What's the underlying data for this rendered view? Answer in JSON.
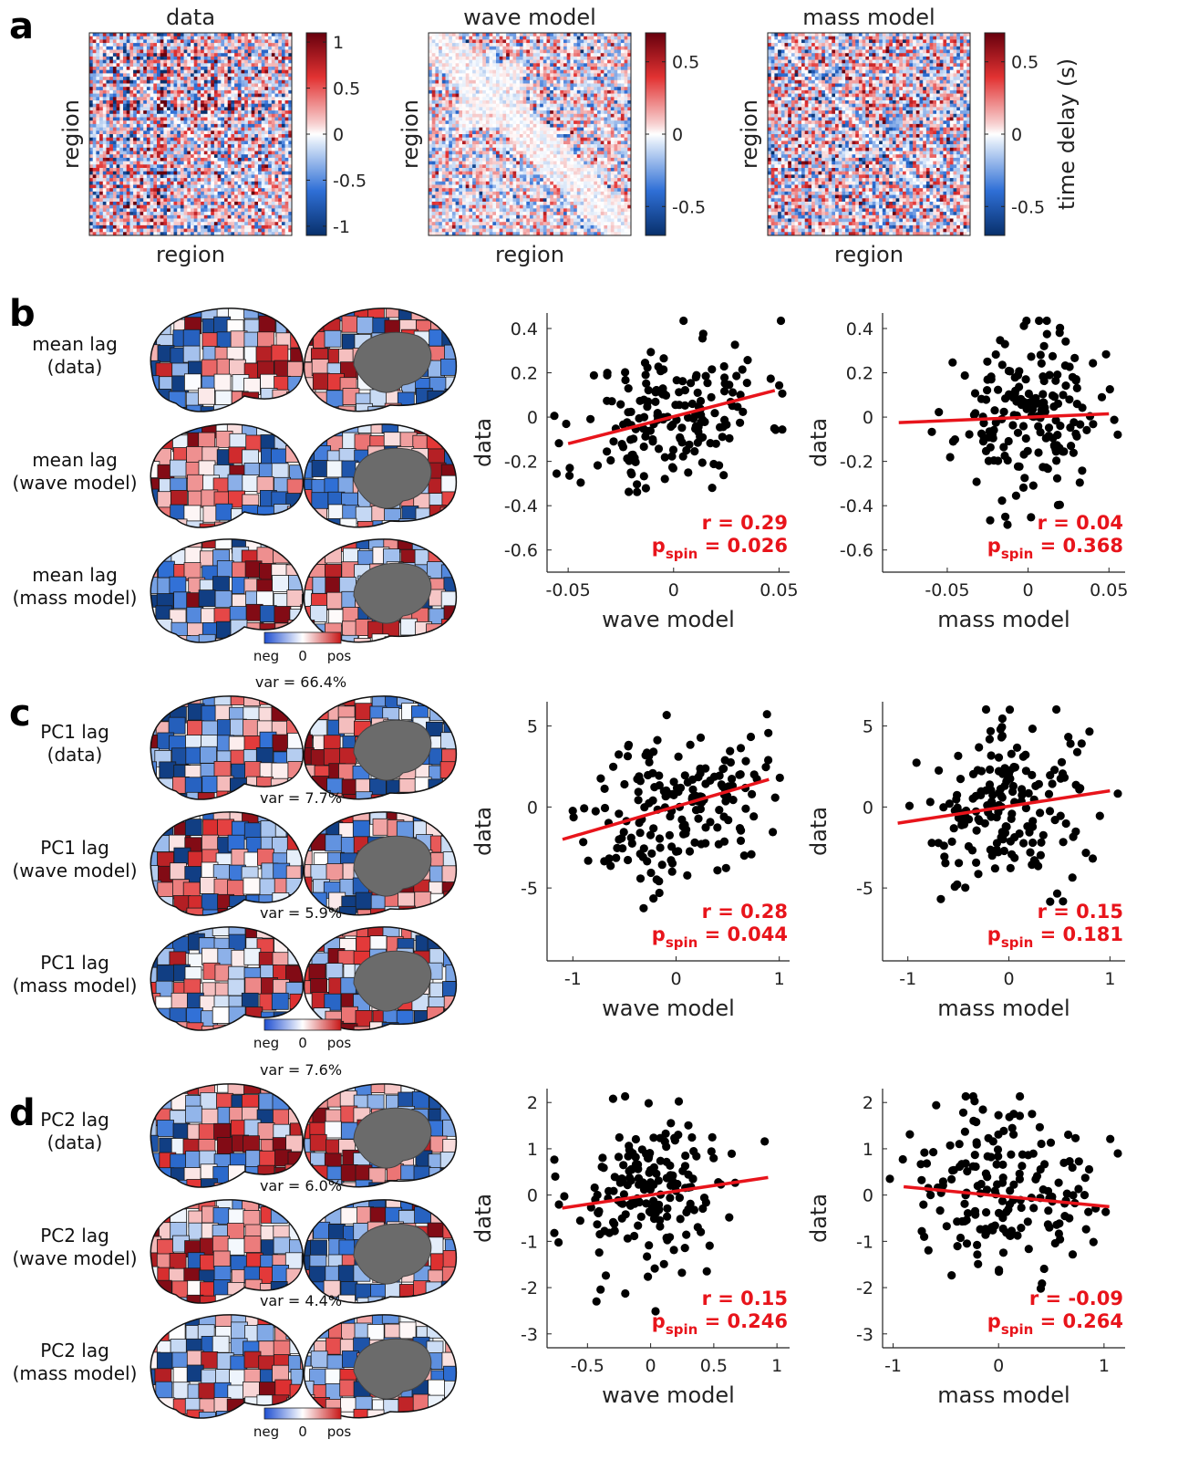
{
  "panel_letters": {
    "a": "a",
    "b": "b",
    "c": "c",
    "d": "d"
  },
  "colors": {
    "neg": "#08306b",
    "mid": "#ffffff",
    "pos": "#67000d",
    "blue": "#2166ac",
    "red": "#d01c1c",
    "fit_line": "#e8141b",
    "stat_text": "#e8141b",
    "point": "#000000",
    "medial_wall": "#6b6b6b"
  },
  "matrices": [
    {
      "title": "data",
      "xlabel": "region",
      "ylabel": "region",
      "colorbar_ticks": [
        "1",
        "0.5",
        "0",
        "-0.5",
        "-1"
      ],
      "colorbar_values": [
        1,
        0.5,
        0,
        -0.5,
        -1
      ],
      "clim": [
        -1.1,
        1.1
      ],
      "colorbar_label": ""
    },
    {
      "title": "wave model",
      "xlabel": "region",
      "ylabel": "region",
      "colorbar_ticks": [
        "0.5",
        "0",
        "-0.5"
      ],
      "colorbar_values": [
        0.5,
        0,
        -0.5
      ],
      "clim": [
        -0.7,
        0.7
      ],
      "colorbar_label": ""
    },
    {
      "title": "mass model",
      "xlabel": "region",
      "ylabel": "region",
      "colorbar_ticks": [
        "0.5",
        "0",
        "-0.5"
      ],
      "colorbar_values": [
        0.5,
        0,
        -0.5
      ],
      "clim": [
        -0.7,
        0.7
      ],
      "colorbar_label": "time delay (s)"
    }
  ],
  "brain_rows": [
    {
      "section": "b",
      "label_line1": "mean lag",
      "label_line2": "(data)",
      "var": ""
    },
    {
      "section": "b",
      "label_line1": "mean lag",
      "label_line2": "(wave model)",
      "var": ""
    },
    {
      "section": "b",
      "label_line1": "mean lag",
      "label_line2": "(mass model)",
      "var": ""
    },
    {
      "section": "c",
      "label_line1": "PC1 lag",
      "label_line2": "(data)",
      "var": "var = 66.4%"
    },
    {
      "section": "c",
      "label_line1": "PC1 lag",
      "label_line2": "(wave model)",
      "var": "var = 7.7%"
    },
    {
      "section": "c",
      "label_line1": "PC1 lag",
      "label_line2": "(mass model)",
      "var": "var = 5.9%"
    },
    {
      "section": "d",
      "label_line1": "PC2 lag",
      "label_line2": "(data)",
      "var": "var = 7.6%"
    },
    {
      "section": "d",
      "label_line1": "PC2 lag",
      "label_line2": "(wave model)",
      "var": "var = 6.0%"
    },
    {
      "section": "d",
      "label_line1": "PC2 lag",
      "label_line2": "(mass model)",
      "var": "var = 4.4%"
    }
  ],
  "brain_colorbar": {
    "neg": "neg",
    "zero": "0",
    "pos": "pos"
  },
  "chart_data": [
    {
      "type": "scatter",
      "section": "b",
      "xlabel": "wave model",
      "ylabel": "data",
      "xlim": [
        -0.06,
        0.055
      ],
      "ylim": [
        -0.7,
        0.47
      ],
      "xticks": [
        -0.05,
        0,
        0.05
      ],
      "xtick_labels": [
        "-0.05",
        "0",
        "0.05"
      ],
      "yticks": [
        0.4,
        0.2,
        0,
        -0.2,
        -0.4,
        -0.6
      ],
      "ytick_labels": [
        "0.4",
        "0.2",
        "0",
        "-0.2",
        "-0.4",
        "-0.6"
      ],
      "fit": {
        "x": [
          -0.05,
          0.048
        ],
        "y": [
          -0.12,
          0.12
        ]
      },
      "r_text": "r = 0.29",
      "p_main": "p",
      "p_sub": "spin",
      "p_value": " = 0.026",
      "n_points": 180,
      "x_sd": 0.022,
      "y_sd": 0.18,
      "corr": 0.29,
      "seed": 11
    },
    {
      "type": "scatter",
      "section": "b",
      "xlabel": "mass model",
      "ylabel": "data",
      "xlim": [
        -0.09,
        0.06
      ],
      "ylim": [
        -0.7,
        0.47
      ],
      "xticks": [
        -0.05,
        0,
        0.05
      ],
      "xtick_labels": [
        "-0.05",
        "0",
        "0.05"
      ],
      "yticks": [
        0.4,
        0.2,
        0,
        -0.2,
        -0.4,
        -0.6
      ],
      "ytick_labels": [
        "0.4",
        "0.2",
        "0",
        "-0.2",
        "-0.4",
        "-0.6"
      ],
      "fit": {
        "x": [
          -0.08,
          0.05
        ],
        "y": [
          -0.025,
          0.015
        ]
      },
      "r_text": "r = 0.04",
      "p_main": "p",
      "p_sub": "spin",
      "p_value": " = 0.368",
      "n_points": 180,
      "x_sd": 0.022,
      "y_sd": 0.18,
      "corr": 0.04,
      "seed": 23
    },
    {
      "type": "scatter",
      "section": "c",
      "xlabel": "wave model",
      "ylabel": "data",
      "xlim": [
        -1.25,
        1.1
      ],
      "ylim": [
        -9.5,
        6.5
      ],
      "xticks": [
        -1,
        0,
        1
      ],
      "xtick_labels": [
        "-1",
        "0",
        "1"
      ],
      "yticks": [
        5,
        0,
        -5
      ],
      "ytick_labels": [
        "5",
        "0",
        "-5"
      ],
      "fit": {
        "x": [
          -1.1,
          0.9
        ],
        "y": [
          -2.0,
          1.7
        ]
      },
      "r_text": "r = 0.28",
      "p_main": "p",
      "p_sub": "spin",
      "p_value": " = 0.044",
      "n_points": 180,
      "x_sd": 0.42,
      "y_sd": 2.5,
      "corr": 0.28,
      "seed": 37
    },
    {
      "type": "scatter",
      "section": "c",
      "xlabel": "mass model",
      "ylabel": "data",
      "xlim": [
        -1.25,
        1.15
      ],
      "ylim": [
        -9.5,
        6.5
      ],
      "xticks": [
        -1,
        0,
        1
      ],
      "xtick_labels": [
        "-1",
        "0",
        "1"
      ],
      "yticks": [
        5,
        0,
        -5
      ],
      "ytick_labels": [
        "5",
        "0",
        "-5"
      ],
      "fit": {
        "x": [
          -1.1,
          1.0
        ],
        "y": [
          -1.0,
          1.0
        ]
      },
      "r_text": "r = 0.15",
      "p_main": "p",
      "p_sub": "spin",
      "p_value": " = 0.181",
      "n_points": 180,
      "x_sd": 0.42,
      "y_sd": 2.5,
      "corr": 0.15,
      "seed": 41
    },
    {
      "type": "scatter",
      "section": "d",
      "xlabel": "wave model",
      "ylabel": "data",
      "xlim": [
        -0.82,
        1.1
      ],
      "ylim": [
        -3.3,
        2.3
      ],
      "xticks": [
        -0.5,
        0,
        0.5,
        1
      ],
      "xtick_labels": [
        "-0.5",
        "0",
        "0.5",
        "1"
      ],
      "yticks": [
        2,
        1,
        0,
        -1,
        -2,
        -3
      ],
      "ytick_labels": [
        "2",
        "1",
        "0",
        "-1",
        "-2",
        "-3"
      ],
      "fit": {
        "x": [
          -0.7,
          0.93
        ],
        "y": [
          -0.28,
          0.38
        ]
      },
      "r_text": "r = 0.15",
      "p_main": "p",
      "p_sub": "spin",
      "p_value": " = 0.246",
      "n_points": 180,
      "x_sd": 0.33,
      "y_sd": 0.9,
      "corr": 0.15,
      "seed": 53
    },
    {
      "type": "scatter",
      "section": "d",
      "xlabel": "mass model",
      "ylabel": "data",
      "xlim": [
        -1.1,
        1.2
      ],
      "ylim": [
        -3.3,
        2.3
      ],
      "xticks": [
        -1,
        0,
        1
      ],
      "xtick_labels": [
        "-1",
        "0",
        "1"
      ],
      "yticks": [
        2,
        1,
        0,
        -1,
        -2,
        -3
      ],
      "ytick_labels": [
        "2",
        "1",
        "0",
        "-1",
        "-2",
        "-3"
      ],
      "fit": {
        "x": [
          -0.9,
          1.05
        ],
        "y": [
          0.18,
          -0.25
        ]
      },
      "r_text": "r = -0.09",
      "p_main": "p",
      "p_sub": "spin",
      "p_value": " = 0.264",
      "n_points": 180,
      "x_sd": 0.42,
      "y_sd": 0.9,
      "corr": -0.09,
      "seed": 67
    }
  ]
}
